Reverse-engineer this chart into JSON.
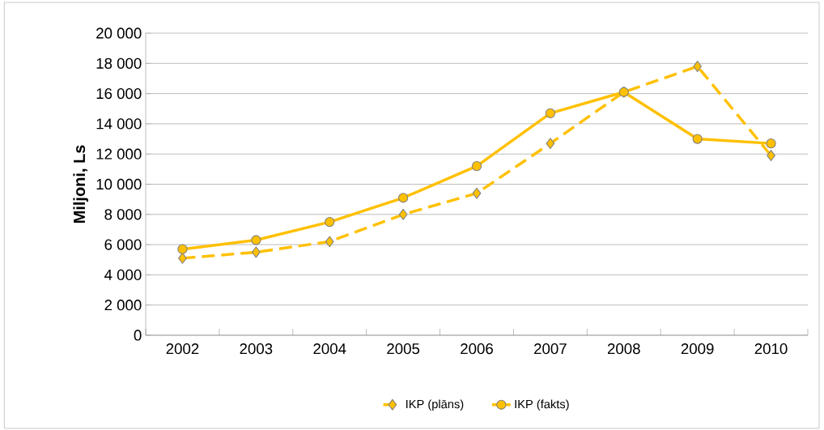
{
  "chart_data": {
    "type": "line",
    "ylabel": "Miljoni, Ls",
    "categories": [
      "2002",
      "2003",
      "2004",
      "2005",
      "2006",
      "2007",
      "2008",
      "2009",
      "2010"
    ],
    "series": [
      {
        "name": "IKP (plāns)",
        "color": "#ffc000",
        "line_style": "dashed",
        "marker": "diamond",
        "values": [
          5100,
          5500,
          6200,
          8000,
          9400,
          12700,
          16100,
          17800,
          11900
        ]
      },
      {
        "name": "IKP (fakts)",
        "color": "#ffc000",
        "line_style": "solid",
        "marker": "circle",
        "values": [
          5700,
          6300,
          7500,
          9100,
          11200,
          14700,
          16100,
          13000,
          12700
        ]
      }
    ],
    "ylim": [
      0,
      20000
    ],
    "yticks": [
      0,
      {
        "value": 2000,
        "label": "2 000"
      },
      {
        "value": 4000,
        "label": "4 000"
      },
      {
        "value": 6000,
        "label": "6 000"
      },
      {
        "value": 8000,
        "label": "8 000"
      },
      {
        "value": 10000,
        "label": "10 000"
      },
      {
        "value": 12000,
        "label": "12 000"
      },
      {
        "value": 14000,
        "label": "14 000"
      },
      {
        "value": 16000,
        "label": "16 000"
      },
      {
        "value": 18000,
        "label": "18 000"
      },
      {
        "value": 20000,
        "label": "20 000"
      }
    ],
    "grid": "y",
    "legend": "bottom"
  }
}
